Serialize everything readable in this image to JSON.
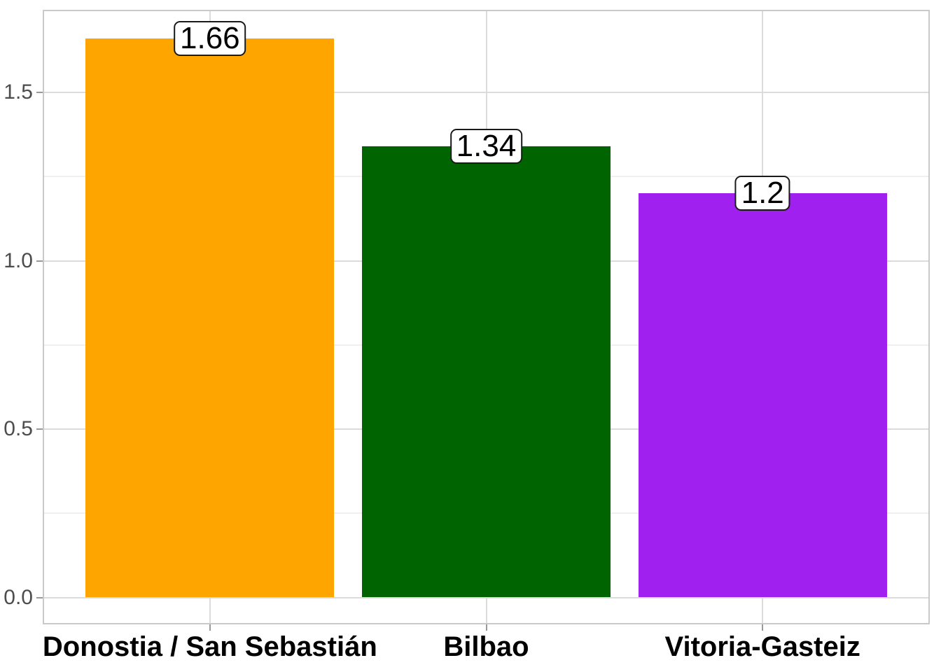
{
  "chart_data": {
    "type": "bar",
    "title": "",
    "xlabel": "",
    "ylabel": "",
    "categories": [
      "Donostia / San Sebastián",
      "Bilbao",
      "Vitoria-Gasteiz"
    ],
    "values": [
      1.66,
      1.34,
      1.2
    ],
    "value_labels": [
      "1.66",
      "1.34",
      "1.2"
    ],
    "bar_colors": [
      "#FFA500",
      "#006400",
      "#A020F0"
    ],
    "y_ticks": [
      {
        "value": 0.0,
        "label": "0.0"
      },
      {
        "value": 0.5,
        "label": "0.5"
      },
      {
        "value": 1.0,
        "label": "1.0"
      },
      {
        "value": 1.5,
        "label": "1.5"
      }
    ],
    "y_minor_ticks": [
      0.25,
      0.75,
      1.25
    ],
    "ylim": [
      -0.083,
      1.745
    ],
    "bar_width_fraction": 0.9,
    "grid": {
      "major": true,
      "minor": true
    },
    "legend": "none",
    "style": {
      "grid_major_color": "#DCDCDC",
      "grid_minor_color": "#EFEFEF",
      "panel_border_color": "#C9C9C9",
      "tick_mark_color": "#999999",
      "y_tick_label_color": "#4D4D4D",
      "x_tick_label_color": "#000000",
      "value_label_text_color": "#000000",
      "value_label_box_bg": "#FFFFFF",
      "value_label_box_border": "#1A1A1A",
      "background": "#FFFFFF"
    }
  }
}
